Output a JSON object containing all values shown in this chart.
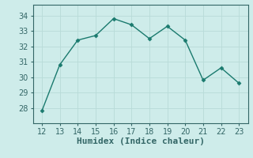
{
  "x": [
    12,
    13,
    14,
    15,
    16,
    17,
    18,
    19,
    20,
    21,
    22,
    23
  ],
  "y": [
    27.8,
    30.8,
    32.4,
    32.7,
    33.8,
    33.4,
    32.5,
    33.3,
    32.4,
    29.8,
    30.6,
    29.6
  ],
  "line_color": "#1a7a6e",
  "marker": "D",
  "marker_size": 2.5,
  "xlabel": "Humidex (Indice chaleur)",
  "xlim": [
    11.5,
    23.5
  ],
  "ylim": [
    27.0,
    34.7
  ],
  "yticks": [
    28,
    29,
    30,
    31,
    32,
    33,
    34
  ],
  "xticks": [
    12,
    13,
    14,
    15,
    16,
    17,
    18,
    19,
    20,
    21,
    22,
    23
  ],
  "background_color": "#ceecea",
  "grid_color": "#b8dbd8",
  "tick_fontsize": 7,
  "xlabel_fontsize": 8,
  "line_width": 1.0
}
